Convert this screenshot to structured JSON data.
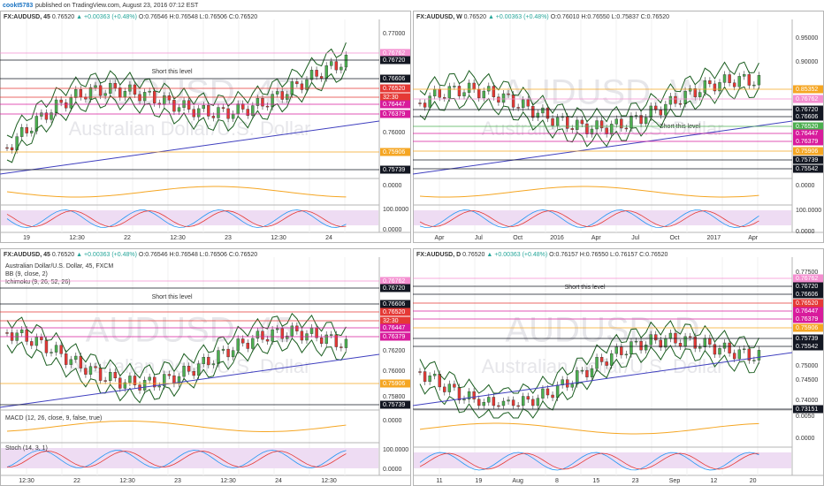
{
  "header": {
    "user": "cookt5783",
    "published": "published on TradingView.com, August 23, 2016 07:12 EST"
  },
  "panels": [
    {
      "title": "FX:AUDUSD, 45",
      "price": "0.76520",
      "delta": "▲ +0.00363 (+0.48%)",
      "ohlc": "O:0.76546 H:0.76548 L:0.76506 C:0.76520",
      "watermark": "AUDUSD, 45",
      "watermark_sub": "Australian Dollar/U.S. Dollar",
      "annotation": "Short this level",
      "legends": [],
      "axis_labels": [
        "0.77000",
        "0.76000",
        "0.0000",
        "100.0000",
        "0.0000"
      ],
      "tags": [
        {
          "label": "0.76762",
          "color": "#f48fd0"
        },
        {
          "label": "0.76720",
          "color": "#131722"
        },
        {
          "label": "0.76606",
          "color": "#131722"
        },
        {
          "label": "0.76520",
          "color": "#e53935"
        },
        {
          "label": "32:30",
          "color": "#e53935"
        },
        {
          "label": "0.76447",
          "color": "#d81b9c"
        },
        {
          "label": "0.76379",
          "color": "#d81b9c"
        },
        {
          "label": "0.75906",
          "color": "#f5a623"
        },
        {
          "label": "0.75739",
          "color": "#131722"
        }
      ],
      "time_labels": [
        "19",
        "12:30",
        "22",
        "12:30",
        "23",
        "12:30",
        "24"
      ]
    },
    {
      "title": "FX:AUDUSD, W",
      "price": "0.76520",
      "delta": "▲ +0.00363 (+0.48%)",
      "ohlc": "O:0.76010 H:0.76550 L:0.75837 C:0.76520",
      "watermark": "AUDUSD, W",
      "watermark_sub": "Australian Dollar/U.S. Dollar",
      "annotation": "Short this level",
      "legends": [],
      "axis_labels": [
        "0.95000",
        "0.90000",
        "0.0000",
        "100.0000",
        "0.0000"
      ],
      "tags": [
        {
          "label": "0.85352",
          "color": "#f5a623"
        },
        {
          "label": "0.76762",
          "color": "#f48fd0"
        },
        {
          "label": "0.76720",
          "color": "#131722"
        },
        {
          "label": "0.76606",
          "color": "#131722"
        },
        {
          "label": "0.76520",
          "color": "#4caf50"
        },
        {
          "label": "0.76447",
          "color": "#d81b9c"
        },
        {
          "label": "0.76379",
          "color": "#d81b9c"
        },
        {
          "label": "0.75906",
          "color": "#f5a623"
        },
        {
          "label": "0.75739",
          "color": "#131722"
        },
        {
          "label": "0.75542",
          "color": "#131722"
        }
      ],
      "time_labels": [
        "Apr",
        "Jul",
        "Oct",
        "2016",
        "Apr",
        "Jul",
        "Oct",
        "2017",
        "Apr"
      ]
    },
    {
      "title": "FX:AUDUSD, 45",
      "price": "0.76520",
      "delta": "▲ +0.00363 (+0.48%)",
      "ohlc": "O:0.76546 H:0.76548 L:0.76506 C:0.76520",
      "watermark": "AUDUSD, 45",
      "watermark_sub": "Australian Dollar/U.S. Dollar",
      "annotation": "Short this level",
      "legends": [
        "Australian Dollar/U.S. Dollar, 45, FXCM",
        "BB (9, close, 2)",
        "Ichimoku (9, 26, 52, 26)",
        "MACD (12, 26, close, 9, false, true)",
        "Stoch (14, 3, 1)"
      ],
      "axis_labels": [
        "0.76200",
        "0.76000",
        "0.75800",
        "0.0000",
        "100.0000",
        "0.0000"
      ],
      "tags": [
        {
          "label": "0.76762",
          "color": "#f48fd0"
        },
        {
          "label": "0.76720",
          "color": "#131722"
        },
        {
          "label": "0.76606",
          "color": "#131722"
        },
        {
          "label": "0.76520",
          "color": "#e53935"
        },
        {
          "label": "32:30",
          "color": "#e53935"
        },
        {
          "label": "0.76447",
          "color": "#d81b9c"
        },
        {
          "label": "0.76379",
          "color": "#d81b9c"
        },
        {
          "label": "0.75906",
          "color": "#f5a623"
        },
        {
          "label": "0.75739",
          "color": "#131722"
        }
      ],
      "time_labels": [
        "12:30",
        "22",
        "12:30",
        "23",
        "12:30",
        "24",
        "12:30"
      ]
    },
    {
      "title": "FX:AUDUSD, D",
      "price": "0.76520",
      "delta": "▲ +0.00363 (+0.48%)",
      "ohlc": "O:0.76157 H:0.76550 L:0.76157 C:0.76520",
      "watermark": "AUDUSD, D",
      "watermark_sub": "Australian Dollar/U.S. Dollar",
      "annotation": "Short this level",
      "legends": [],
      "axis_labels": [
        "0.77500",
        "0.75000",
        "0.74500",
        "0.74000",
        "0.0050",
        "0.0000"
      ],
      "tags": [
        {
          "label": "0.76762",
          "color": "#f48fd0"
        },
        {
          "label": "0.76720",
          "color": "#131722"
        },
        {
          "label": "0.76606",
          "color": "#131722"
        },
        {
          "label": "0.76520",
          "color": "#e53935"
        },
        {
          "label": "0.76447",
          "color": "#d81b9c"
        },
        {
          "label": "0.76379",
          "color": "#d81b9c"
        },
        {
          "label": "0.75906",
          "color": "#f5a623"
        },
        {
          "label": "0.75739",
          "color": "#131722"
        },
        {
          "label": "0.75542",
          "color": "#131722"
        },
        {
          "label": "0.73151",
          "color": "#131722"
        }
      ],
      "time_labels": [
        "11",
        "19",
        "Aug",
        "8",
        "15",
        "23",
        "Sep",
        "12",
        "20"
      ]
    }
  ]
}
